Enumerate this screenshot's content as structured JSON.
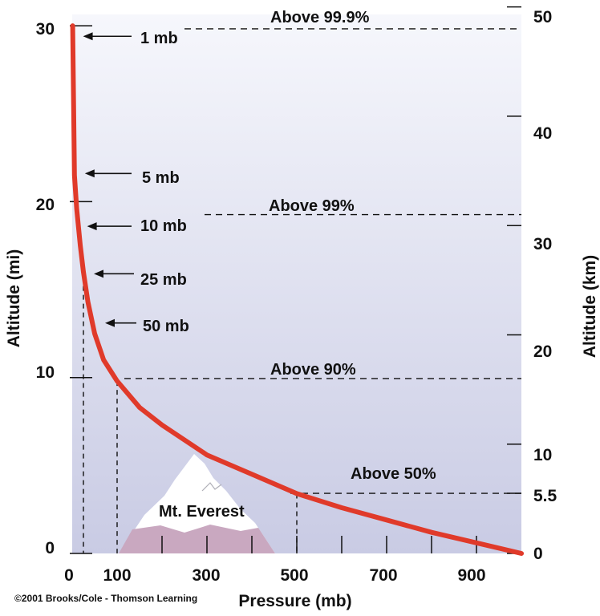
{
  "chart_data": {
    "type": "line",
    "title": "",
    "xlabel": "Pressure (mb)",
    "ylabel_left": "Altitude (mi)",
    "ylabel_right": "Altitude (km)",
    "xlim": [
      0,
      1000
    ],
    "ylim_mi": [
      0,
      30
    ],
    "x_ticks": [
      0,
      100,
      300,
      500,
      700,
      900
    ],
    "x_tick_labels": [
      "0",
      "100",
      "300",
      "500",
      "700",
      "900"
    ],
    "y_ticks_mi": [
      0,
      10,
      20,
      30
    ],
    "y_tick_labels_mi": [
      "0",
      "10",
      "20",
      "30"
    ],
    "y_ticks_km": [
      0,
      5.5,
      10,
      20,
      30,
      40,
      50
    ],
    "y_tick_labels_km": [
      "0",
      "5.5",
      "10",
      "20",
      "30",
      "40",
      "50"
    ],
    "series": [
      {
        "color": "#e03a2a",
        "x": [
          1000,
          900,
          800,
          700,
          600,
          500,
          400,
          300,
          200,
          150,
          100,
          70,
          50,
          35,
          25,
          18,
          10,
          5,
          1
        ],
        "y": [
          0,
          0.6,
          1.2,
          1.9,
          2.6,
          3.4,
          4.5,
          5.6,
          7.3,
          8.3,
          9.8,
          11.0,
          12.5,
          14.3,
          16.0,
          17.5,
          19.6,
          21.5,
          30
        ]
      }
    ],
    "pressure_labels": [
      {
        "text": "1 mb",
        "pressure": 1,
        "alt_mi": 29.4
      },
      {
        "text": "5 mb",
        "pressure": 5,
        "alt_mi": 21.6
      },
      {
        "text": "10 mb",
        "pressure": 10,
        "alt_mi": 18.6
      },
      {
        "text": "25 mb",
        "pressure": 25,
        "alt_mi": 15.9
      },
      {
        "text": "50 mb",
        "pressure": 50,
        "alt_mi": 13.1
      }
    ],
    "annotations": [
      {
        "text": "Above 99.9%",
        "alt_km": 48
      },
      {
        "text": "Above 99%",
        "alt_km": 31
      },
      {
        "text": "Above 90%",
        "alt_km": 16
      },
      {
        "text": "Above 50%",
        "alt_km": 5.5
      }
    ],
    "drop_lines_pressure": [
      25,
      100,
      500
    ],
    "mountain_label": "Mt. Everest",
    "background_gradient": [
      "#f6f7fc",
      "#c9cbe4"
    ],
    "mountain_color": "#c9a8c0",
    "credit": "©2001 Brooks/Cole - Thomson Learning"
  }
}
